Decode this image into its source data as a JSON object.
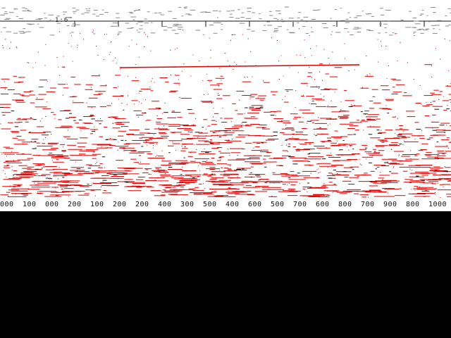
{
  "colors": {
    "background": "#ffffff",
    "trace": "#e00000",
    "ink": "#111111",
    "void": "#000000"
  },
  "ruler": {
    "label": "1:6"
  },
  "axis": {
    "tick_labels": [
      "000",
      "100",
      "000",
      "200",
      "100",
      "200",
      "200",
      "400",
      "300",
      "500",
      "400",
      "600",
      "500",
      "700",
      "600",
      "800",
      "700",
      "900",
      "800",
      "1000"
    ]
  }
}
